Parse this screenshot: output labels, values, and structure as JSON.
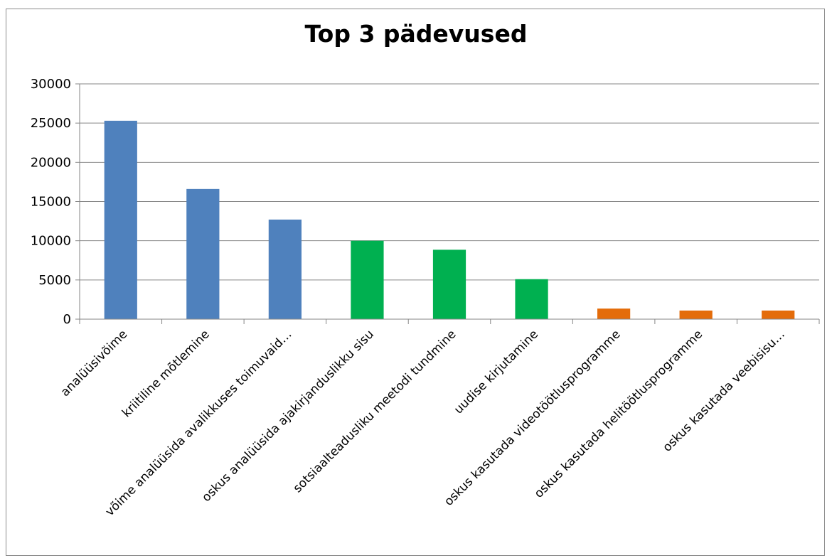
{
  "chart_data": {
    "type": "bar",
    "title": "Top 3 pädevused",
    "xlabel": "",
    "ylabel": "",
    "ylim": [
      0,
      30000
    ],
    "yticks": [
      0,
      5000,
      10000,
      15000,
      20000,
      25000,
      30000
    ],
    "grid": true,
    "legend": "none",
    "categories": [
      "analüüsivõime",
      "kriitiline mõtlemine",
      "võime analüüsida avalikkuses toimuvaid…",
      "oskus analüüsida ajakirjanduslikku sisu",
      "sotsiaalteadusliku meetodi tundmine",
      "uudise kirjutamine",
      "oskus kasutada videotöötlusprogramme",
      "oskus kasutada helitöötlusprogramme",
      "oskus kasutada veebisisu…"
    ],
    "values": [
      25300,
      16600,
      12700,
      10000,
      8850,
      5100,
      1350,
      1100,
      1100
    ],
    "colors": [
      "#4f81bd",
      "#4f81bd",
      "#4f81bd",
      "#00b050",
      "#00b050",
      "#00b050",
      "#e46c0a",
      "#e46c0a",
      "#e46c0a"
    ]
  }
}
